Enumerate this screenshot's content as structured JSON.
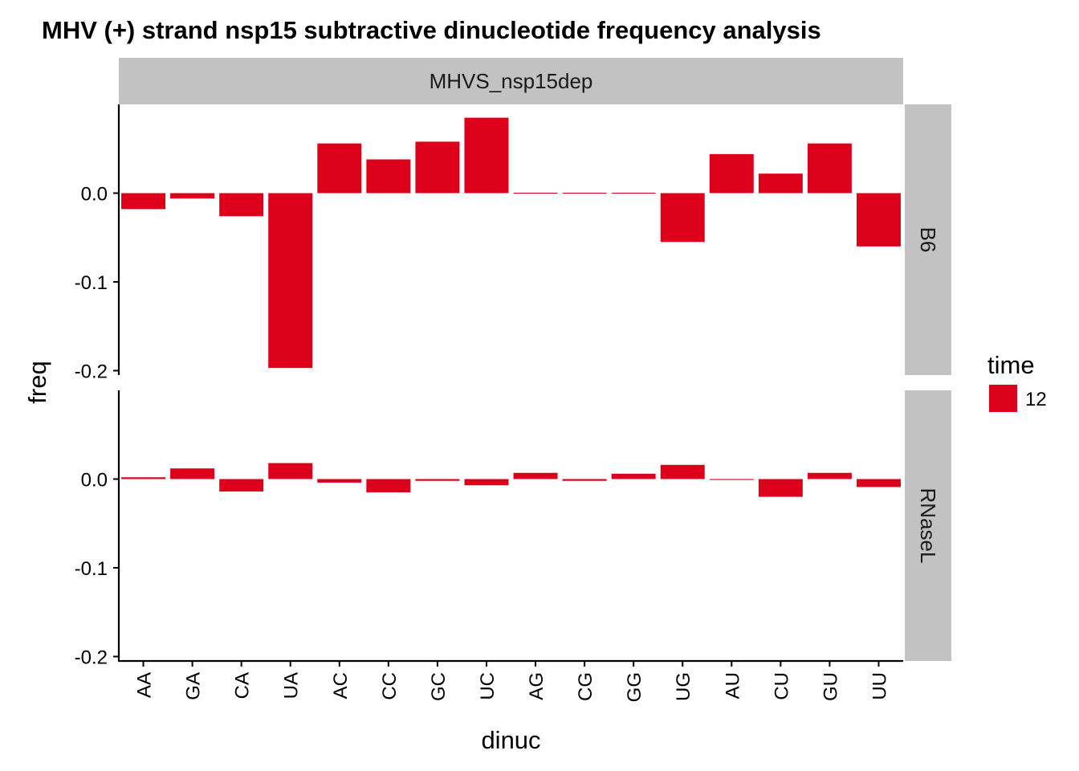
{
  "chart_data": {
    "type": "bar",
    "title": "MHV (+) strand nsp15 subtractive dinucleotide frequency analysis",
    "xlabel": "dinuc",
    "ylabel": "freq",
    "ylim": [
      -0.205,
      0.1
    ],
    "yticks": [
      {
        "value": 0.0,
        "label": "0.0"
      },
      {
        "value": -0.1,
        "label": "-0.1"
      },
      {
        "value": -0.2,
        "label": "-0.2"
      }
    ],
    "column_facet": "MHVS_nsp15dep",
    "categories": [
      "AA",
      "GA",
      "CA",
      "UA",
      "AC",
      "CC",
      "GC",
      "UC",
      "AG",
      "CG",
      "GG",
      "UG",
      "AU",
      "CU",
      "GU",
      "UU"
    ],
    "bar_color": "#dc001a",
    "legend": {
      "title": "time",
      "position": "right",
      "entries": [
        {
          "label": "12",
          "color": "#dc001a"
        }
      ]
    },
    "panels": [
      {
        "facet": "B6",
        "values": [
          -0.018,
          -0.006,
          -0.026,
          -0.197,
          0.056,
          0.038,
          0.058,
          0.085,
          0.0005,
          0.0008,
          0.0008,
          -0.055,
          0.044,
          0.022,
          0.056,
          -0.06
        ]
      },
      {
        "facet": "RNaseL",
        "values": [
          0.002,
          0.012,
          -0.014,
          0.018,
          -0.004,
          -0.015,
          -0.002,
          -0.007,
          0.007,
          -0.002,
          0.006,
          0.016,
          -0.001,
          -0.02,
          0.007,
          -0.009
        ]
      }
    ]
  }
}
